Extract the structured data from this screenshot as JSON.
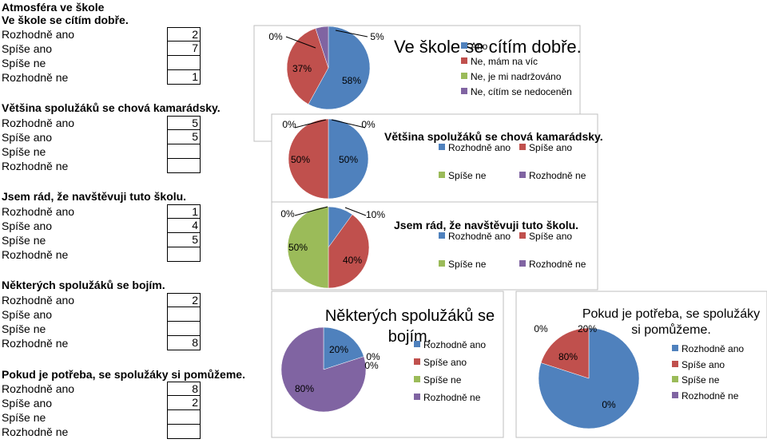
{
  "sheet": {
    "sections": [
      {
        "title": "Atmosféra ve škole",
        "is_header": true
      },
      {
        "title": "Ve škole se cítím dobře.",
        "rows": [
          {
            "label": "Rozhodně ano",
            "value": "2"
          },
          {
            "label": "Spíše ano",
            "value": "7"
          },
          {
            "label": "Spíše ne",
            "value": ""
          },
          {
            "label": "Rozhodně ne",
            "value": "1"
          }
        ]
      },
      {
        "title": "Většina spolužáků se chová kamarádsky.",
        "rows": [
          {
            "label": "Rozhodně ano",
            "value": "5"
          },
          {
            "label": "Spíše ano",
            "value": "5"
          },
          {
            "label": "Spíše ne",
            "value": ""
          },
          {
            "label": "Rozhodně ne",
            "value": ""
          }
        ]
      },
      {
        "title": "Jsem rád, že navštěvuji tuto školu.",
        "rows": [
          {
            "label": "Rozhodně ano",
            "value": "1"
          },
          {
            "label": "Spíše ano",
            "value": "4"
          },
          {
            "label": "Spíše ne",
            "value": "5"
          },
          {
            "label": "Rozhodně ne",
            "value": ""
          }
        ]
      },
      {
        "title": "Některých spolužáků se bojím.",
        "rows": [
          {
            "label": "Rozhodně ano",
            "value": "2"
          },
          {
            "label": "Spíše ano",
            "value": ""
          },
          {
            "label": "Spíše ne",
            "value": ""
          },
          {
            "label": "Rozhodně ne",
            "value": "8"
          }
        ]
      },
      {
        "title": "Pokud je potřeba, se spolužáky si pomůžeme.",
        "rows": [
          {
            "label": "Rozhodně ano",
            "value": "8"
          },
          {
            "label": "Spíše ano",
            "value": "2"
          },
          {
            "label": "Spíše ne",
            "value": ""
          },
          {
            "label": "Rozhodně ne",
            "value": ""
          }
        ]
      }
    ]
  },
  "colors": {
    "blue": "#4f81bd",
    "red": "#c0504d",
    "green": "#9bbb59",
    "purple": "#8064a2"
  },
  "chart_data": [
    {
      "type": "pie",
      "title": "Ve škole se cítím dobře.",
      "categories": [
        "Ano",
        "Ne, mám na víc",
        "Ne, je mi nadržováno",
        "Ne, cítím se nedoceněn"
      ],
      "values": [
        58,
        37,
        0,
        5
      ],
      "data_labels": [
        "58%",
        "37%",
        "0%",
        "5%"
      ],
      "legend": "right"
    },
    {
      "type": "pie",
      "title": "Většina spolužáků se chová kamarádsky.",
      "categories": [
        "Rozhodně ano",
        "Spíše ano",
        "Spíše ne",
        "Rozhodně ne"
      ],
      "values": [
        50,
        50,
        0,
        0
      ],
      "data_labels": [
        "50%",
        "50%",
        "0%",
        "0%"
      ],
      "legend": "right"
    },
    {
      "type": "pie",
      "title": "Jsem rád, že navštěvuji tuto školu.",
      "categories": [
        "Rozhodně ano",
        "Spíše ano",
        "Spíše ne",
        "Rozhodně ne"
      ],
      "values": [
        10,
        40,
        50,
        0
      ],
      "data_labels": [
        "10%",
        "40%",
        "50%",
        "0%"
      ],
      "legend": "right"
    },
    {
      "type": "pie",
      "title": "Některých spolužáků se bojím.",
      "categories": [
        "Rozhodně ano",
        "Spíše ano",
        "Spíše ne",
        "Rozhodně ne"
      ],
      "values": [
        20,
        0,
        0,
        80
      ],
      "data_labels": [
        "20%",
        "0%",
        "0%",
        "80%"
      ],
      "legend": "right"
    },
    {
      "type": "pie",
      "title": "Pokud je potřeba, se spolužáky si pomůžeme.",
      "categories": [
        "Rozhodně ano",
        "Spíše ano",
        "Spíše ne",
        "Rozhodně ne"
      ],
      "values": [
        80,
        20,
        0,
        0
      ],
      "data_labels": [
        "80%",
        "20%",
        "0%",
        "0%"
      ],
      "legend": "right"
    }
  ]
}
